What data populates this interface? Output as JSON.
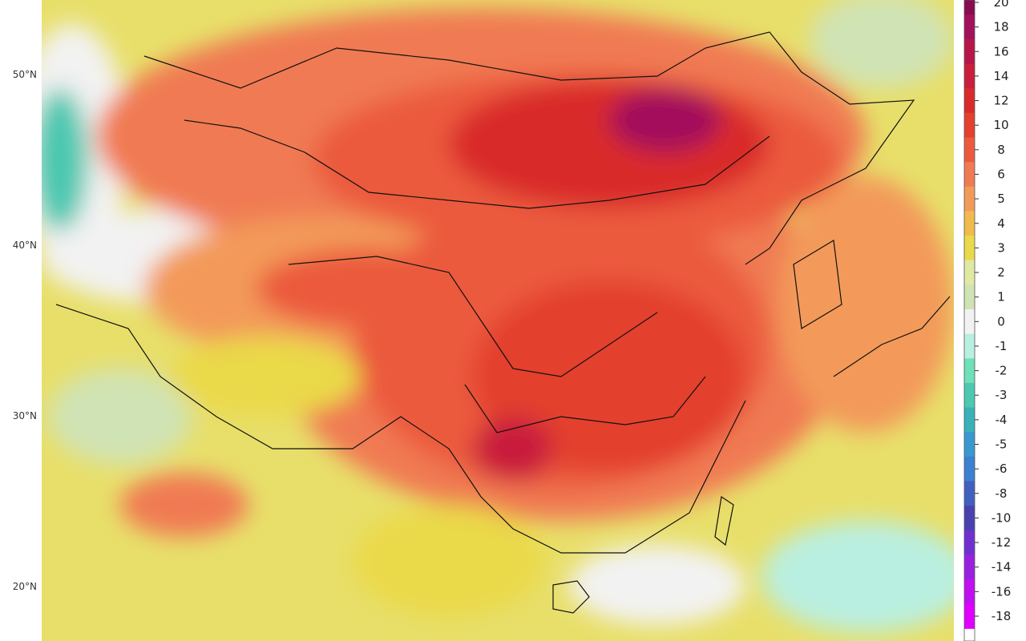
{
  "latitude_labels": [
    "50°N",
    "40°N",
    "30°N",
    "20°N"
  ],
  "colorbar": {
    "levels": [
      {
        "label": "20",
        "color": "#8a0b52"
      },
      {
        "label": "18",
        "color": "#a3105c"
      },
      {
        "label": "16",
        "color": "#b8164a"
      },
      {
        "label": "14",
        "color": "#c91e3c"
      },
      {
        "label": "12",
        "color": "#d92a2c"
      },
      {
        "label": "10",
        "color": "#e3402f"
      },
      {
        "label": "8",
        "color": "#eb5a3e"
      },
      {
        "label": "6",
        "color": "#f07a52"
      },
      {
        "label": "5",
        "color": "#f39a5a"
      },
      {
        "label": "4",
        "color": "#f1ba4e"
      },
      {
        "label": "3",
        "color": "#ead94a"
      },
      {
        "label": "2",
        "color": "#dfe9a2"
      },
      {
        "label": "1",
        "color": "#d0e3b4"
      },
      {
        "label": "0",
        "color": "#f2f2f2"
      },
      {
        "label": "-1",
        "color": "#b9efe0"
      },
      {
        "label": "-2",
        "color": "#6fe0b8"
      },
      {
        "label": "-3",
        "color": "#4cc8b0"
      },
      {
        "label": "-4",
        "color": "#3ab0b8"
      },
      {
        "label": "-5",
        "color": "#3a98d0"
      },
      {
        "label": "-6",
        "color": "#3c80d0"
      },
      {
        "label": "-8",
        "color": "#4060c0"
      },
      {
        "label": "-10",
        "color": "#4a40b0"
      },
      {
        "label": "-12",
        "color": "#7030d0"
      },
      {
        "label": "-14",
        "color": "#9a20e0"
      },
      {
        "label": "-16",
        "color": "#c010f0"
      },
      {
        "label": "-18",
        "color": "#e000ff"
      }
    ]
  }
}
